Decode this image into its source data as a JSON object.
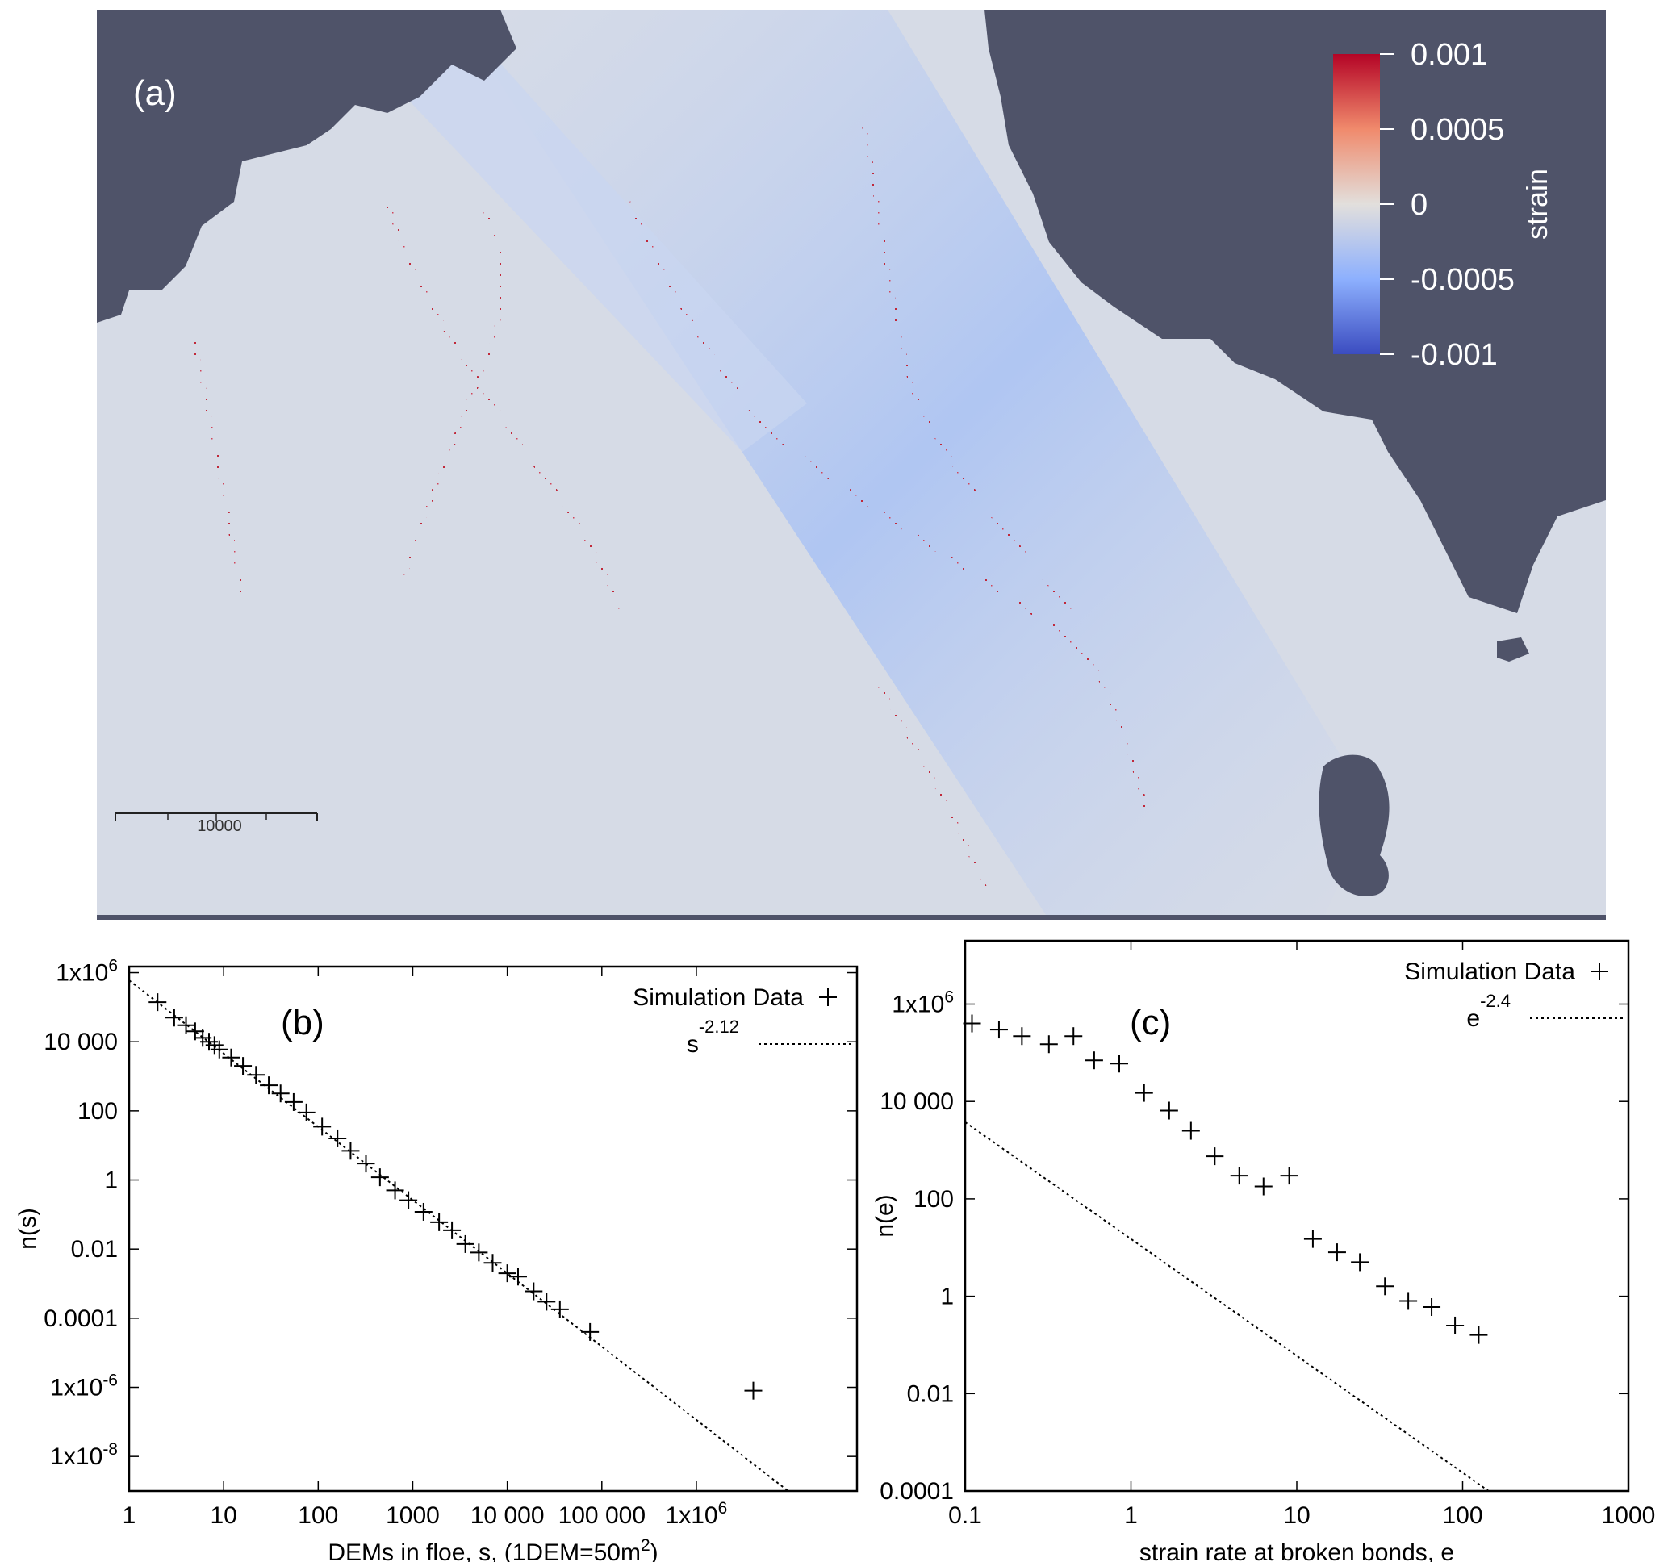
{
  "map": {
    "panel_label": "(a)",
    "scale_bar_label": "10000",
    "colorbar": {
      "title": "strain",
      "ticks": [
        "0.001",
        "0.0005",
        "0",
        "-0.0005",
        "-0.001"
      ],
      "colors": {
        "high": "#b40426",
        "mid": "#dddddd",
        "low": "#3b4cc0"
      }
    },
    "land_color": "#4f5369",
    "ice_color": "#d6dbe6"
  },
  "chart_data": [
    {
      "type": "scatter",
      "panel_label": "(b)",
      "xlabel": "DEMs in floe, s, (1DEM=50m",
      "xlabel_sup": "2",
      "xlabel_end": ")",
      "ylabel": "n(s)",
      "xscale": "log",
      "yscale": "log",
      "xlim": [
        1,
        50000000
      ],
      "ylim": [
        1e-09,
        1500000
      ],
      "xticks": [
        {
          "v": 1,
          "label": "1"
        },
        {
          "v": 10,
          "label": "10"
        },
        {
          "v": 100,
          "label": "100"
        },
        {
          "v": 1000,
          "label": "1000"
        },
        {
          "v": 10000,
          "label": "10 000"
        },
        {
          "v": 100000,
          "label": "100 000"
        },
        {
          "v": 1000000,
          "label": "1x10",
          "sup": "6"
        }
      ],
      "yticks": [
        {
          "v": 1e-08,
          "label": "1x10",
          "sup": "-8"
        },
        {
          "v": 1e-06,
          "label": "1x10",
          "sup": "-6"
        },
        {
          "v": 0.0001,
          "label": "0.0001"
        },
        {
          "v": 0.01,
          "label": "0.01"
        },
        {
          "v": 1,
          "label": "1"
        },
        {
          "v": 100,
          "label": "100"
        },
        {
          "v": 10000,
          "label": "10 000"
        },
        {
          "v": 1000000,
          "label": "1x10",
          "sup": "6"
        }
      ],
      "legend": {
        "position": "top-right",
        "data_label": "Simulation Data",
        "fit_label": "s",
        "fit_sup": "-2.12"
      },
      "series": [
        {
          "name": "Simulation Data",
          "marker": "plus",
          "x": [
            2,
            3,
            4,
            5,
            6,
            7,
            8,
            9,
            12,
            16,
            22,
            30,
            40,
            55,
            75,
            110,
            160,
            220,
            320,
            450,
            650,
            900,
            1300,
            1900,
            2600,
            3600,
            5000,
            7000,
            10000,
            13000,
            19000,
            26000,
            36000,
            75000,
            4000000
          ],
          "y": [
            140000,
            50000,
            30000,
            20000,
            13000,
            10000,
            8000,
            6000,
            3500,
            2000,
            1100,
            550,
            320,
            180,
            90,
            35,
            16,
            7,
            3,
            1.2,
            0.5,
            0.26,
            0.12,
            0.06,
            0.035,
            0.014,
            0.008,
            0.004,
            0.002,
            0.0016,
            0.0006,
            0.0003,
            0.00018,
            4e-05,
            8e-07
          ]
        },
        {
          "name": "s^-2.12",
          "style": "dotted",
          "coefficient": 600000,
          "exponent": -2.12
        }
      ]
    },
    {
      "type": "scatter",
      "panel_label": "(c)",
      "xlabel": "strain rate at broken bonds, e",
      "ylabel": "n(e)",
      "xscale": "log",
      "yscale": "log",
      "xlim": [
        0.1,
        1000
      ],
      "ylim": [
        0.0001,
        20000000
      ],
      "xticks": [
        {
          "v": 0.1,
          "label": "0.1"
        },
        {
          "v": 1,
          "label": "1"
        },
        {
          "v": 10,
          "label": "10"
        },
        {
          "v": 100,
          "label": "100"
        },
        {
          "v": 1000,
          "label": "1000"
        }
      ],
      "yticks": [
        {
          "v": 0.0001,
          "label": "0.0001"
        },
        {
          "v": 0.01,
          "label": "0.01"
        },
        {
          "v": 1,
          "label": "1"
        },
        {
          "v": 100,
          "label": "100"
        },
        {
          "v": 10000,
          "label": "10 000"
        },
        {
          "v": 1000000,
          "label": "1x10",
          "sup": "6"
        }
      ],
      "legend": {
        "position": "top-right",
        "data_label": "Simulation Data",
        "fit_label": "e",
        "fit_sup": "-2.4"
      },
      "series": [
        {
          "name": "Simulation Data",
          "marker": "plus",
          "x": [
            0.11,
            0.16,
            0.22,
            0.32,
            0.45,
            0.6,
            0.85,
            1.2,
            1.7,
            2.3,
            3.2,
            4.5,
            6.3,
            9,
            12.5,
            17.5,
            24,
            34,
            47,
            65,
            90,
            125
          ],
          "y": [
            400000,
            300000,
            220000,
            150000,
            220000,
            70000,
            60000,
            15000,
            6500,
            2500,
            750,
            300,
            180,
            300,
            15,
            8,
            5,
            1.6,
            0.8,
            0.6,
            0.25,
            0.16
          ]
        },
        {
          "name": "e^-2.4",
          "style": "dotted",
          "coefficient": 15,
          "exponent": -2.4
        }
      ]
    }
  ]
}
